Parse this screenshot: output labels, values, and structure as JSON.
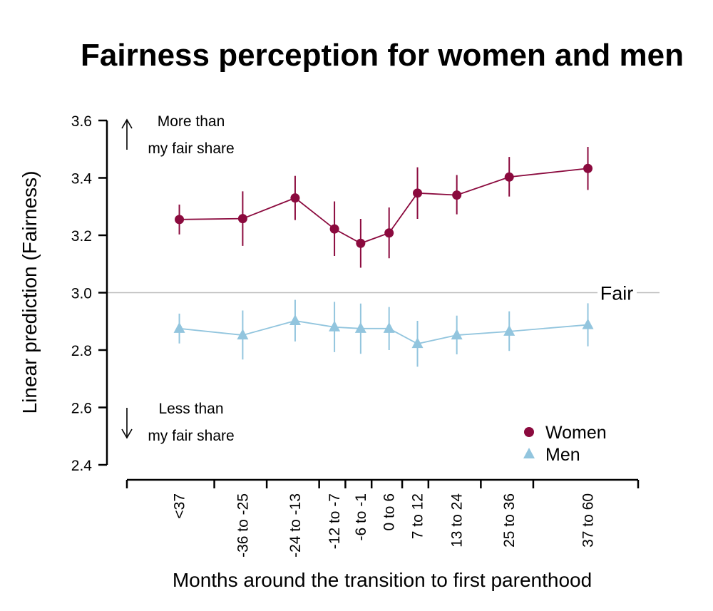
{
  "chart_data": {
    "type": "line",
    "title": "Fairness perception for women and men",
    "xlabel": "Months around the transition to first parenthood",
    "ylabel": "Linear prediction (Fairness)",
    "ylim": [
      2.4,
      3.6
    ],
    "yticks": [
      "2.4",
      "2.6",
      "2.8",
      "3.0",
      "3.2",
      "3.4",
      "3.6"
    ],
    "categories": [
      "<37",
      "-36 to -25",
      "-24 to -13",
      "-12 to -7",
      "-6 to -1",
      "0 to 6",
      "7 to 12",
      "13 to 24",
      "25 to 36",
      "37 to 60"
    ],
    "x": [
      -45,
      -30.5,
      -18.5,
      -9.5,
      -3.5,
      3,
      9.5,
      18.5,
      30.5,
      48.5
    ],
    "x_boundaries": [
      -57,
      -37,
      -25,
      -13,
      -7,
      -1,
      6,
      12,
      24,
      36,
      60
    ],
    "reference_line": {
      "y": 3.0,
      "label": "Fair"
    },
    "series": [
      {
        "name": "Women",
        "marker": "circle",
        "color": "#8b0a3e",
        "values": [
          3.255,
          3.258,
          3.33,
          3.222,
          3.172,
          3.208,
          3.347,
          3.34,
          3.403,
          3.433
        ],
        "ci_low": [
          3.203,
          3.163,
          3.253,
          3.128,
          3.087,
          3.12,
          3.257,
          3.273,
          3.335,
          3.358
        ],
        "ci_high": [
          3.307,
          3.353,
          3.407,
          3.318,
          3.257,
          3.297,
          3.437,
          3.41,
          3.473,
          3.508
        ]
      },
      {
        "name": "Men",
        "marker": "triangle",
        "color": "#92c5de",
        "values": [
          2.875,
          2.852,
          2.902,
          2.88,
          2.875,
          2.875,
          2.822,
          2.852,
          2.865,
          2.888
        ],
        "ci_low": [
          2.823,
          2.767,
          2.83,
          2.793,
          2.787,
          2.8,
          2.742,
          2.785,
          2.797,
          2.813
        ],
        "ci_high": [
          2.927,
          2.938,
          2.975,
          2.968,
          2.962,
          2.95,
          2.902,
          2.92,
          2.935,
          2.963
        ]
      }
    ],
    "annotations": {
      "more": [
        "More than",
        "my fair share"
      ],
      "less": [
        "Less than",
        "my fair share"
      ]
    },
    "legend": {
      "position": "bottom-right",
      "entries": [
        "Women",
        "Men"
      ]
    }
  }
}
